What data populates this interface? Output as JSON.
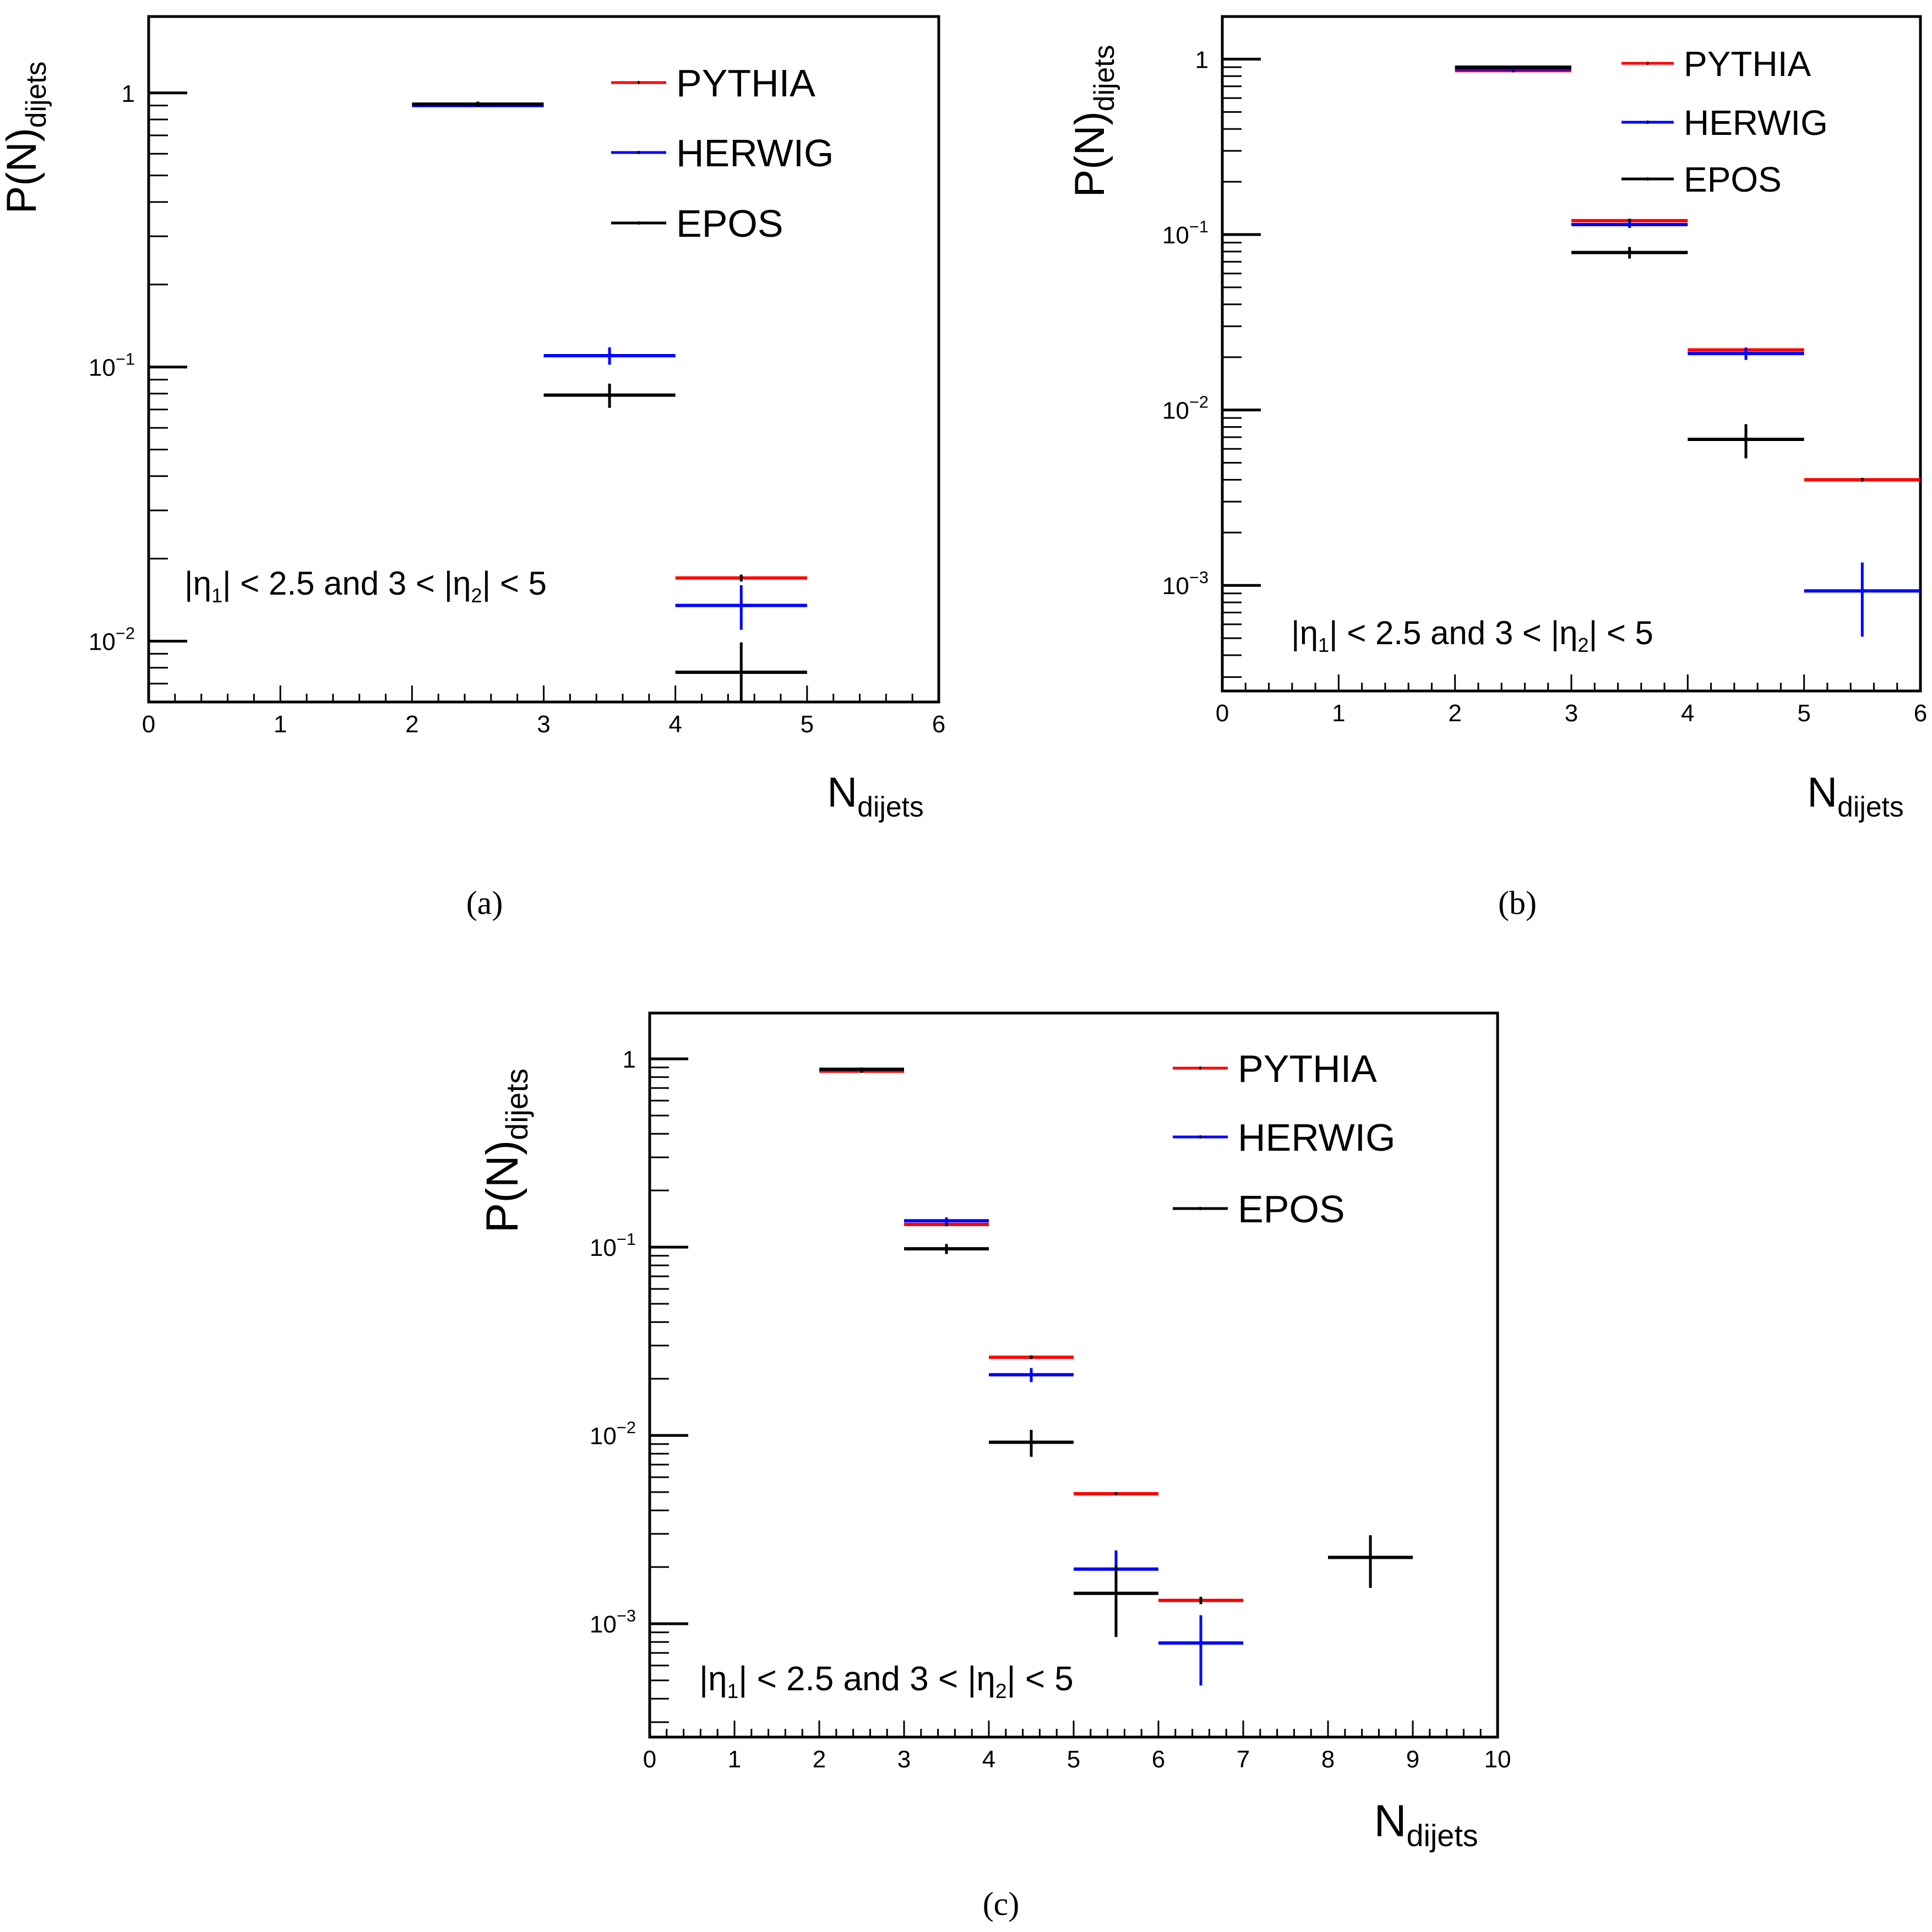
{
  "figure": {
    "captions": [
      "(a)",
      "(b)",
      "(c)"
    ]
  },
  "chart_data": [
    {
      "panel": "a",
      "type": "scatter",
      "yscale": "log",
      "xlim": [
        0,
        6
      ],
      "ylim": [
        0.006,
        1.9
      ],
      "x_ticks": [
        "0",
        "1",
        "2",
        "3",
        "4",
        "5",
        "6"
      ],
      "y_ticks": [
        {
          "value": 1,
          "label": "1",
          "exp": ""
        },
        {
          "value": 0.1,
          "label": "10",
          "exp": "−1"
        },
        {
          "value": 0.01,
          "label": "10",
          "exp": "−2"
        }
      ],
      "ylabel": {
        "main": "P(N)",
        "sub": "dijets"
      },
      "xlabel": {
        "main": "N",
        "sub": "dijets"
      },
      "annotation": {
        "parts": [
          "|η",
          "1",
          "| < 2.5 and 3 < |η",
          "2",
          "| < 5"
        ]
      },
      "legend": [
        {
          "name": "PYTHIA",
          "color": "#ff0000"
        },
        {
          "name": "HERWIG",
          "color": "#0000ff"
        },
        {
          "name": "EPOS",
          "color": "#000000"
        }
      ],
      "series": [
        {
          "name": "PYTHIA",
          "color": "#ff0000",
          "points": [
            {
              "x": 2.5,
              "y": 0.9,
              "yerr": 0.006
            },
            {
              "x": 3.5,
              "y": 0.11,
              "yerr": 0.003
            },
            {
              "x": 4.5,
              "y": 0.017,
              "yerr": 0.0005
            }
          ]
        },
        {
          "name": "HERWIG",
          "color": "#0000ff",
          "points": [
            {
              "x": 2.5,
              "y": 0.9,
              "yerr": 0.008
            },
            {
              "x": 3.5,
              "y": 0.11,
              "yerr": 0.008
            },
            {
              "x": 4.5,
              "y": 0.0135,
              "yerr": 0.0025
            }
          ]
        },
        {
          "name": "EPOS",
          "color": "#000000",
          "points": [
            {
              "x": 2.5,
              "y": 0.91,
              "yerr": 0.02
            },
            {
              "x": 3.5,
              "y": 0.079,
              "yerr": 0.008
            },
            {
              "x": 4.5,
              "y": 0.0077,
              "yerr": 0.0022
            }
          ]
        }
      ]
    },
    {
      "panel": "b",
      "type": "scatter",
      "yscale": "log",
      "xlim": [
        0,
        6
      ],
      "ylim": [
        0.00025,
        1.75
      ],
      "x_ticks": [
        "0",
        "1",
        "2",
        "3",
        "4",
        "5",
        "6"
      ],
      "y_ticks": [
        {
          "value": 1,
          "label": "1",
          "exp": ""
        },
        {
          "value": 0.1,
          "label": "10",
          "exp": "−1"
        },
        {
          "value": 0.01,
          "label": "10",
          "exp": "−2"
        },
        {
          "value": 0.001,
          "label": "10",
          "exp": "−3"
        }
      ],
      "ylabel": {
        "main": "P(N)",
        "sub": "dijets"
      },
      "xlabel": {
        "main": "N",
        "sub": "dijets"
      },
      "annotation": {
        "parts": [
          "|η",
          "1",
          "| < 2.5 and  3 < |η",
          "2",
          "| < 5"
        ]
      },
      "legend": [
        {
          "name": "PYTHIA",
          "color": "#ff0000"
        },
        {
          "name": "HERWIG",
          "color": "#0000ff"
        },
        {
          "name": "EPOS",
          "color": "#000000"
        }
      ],
      "series": [
        {
          "name": "PYTHIA",
          "color": "#ff0000",
          "points": [
            {
              "x": 2.5,
              "y": 0.86,
              "yerr": 0.006
            },
            {
              "x": 3.5,
              "y": 0.12,
              "yerr": 0.003
            },
            {
              "x": 4.5,
              "y": 0.022,
              "yerr": 0.0006
            },
            {
              "x": 5.5,
              "y": 0.004,
              "yerr": 0.0001
            }
          ]
        },
        {
          "name": "HERWIG",
          "color": "#0000ff",
          "points": [
            {
              "x": 2.5,
              "y": 0.88,
              "yerr": 0.006
            },
            {
              "x": 3.5,
              "y": 0.114,
              "yerr": 0.005
            },
            {
              "x": 4.5,
              "y": 0.021,
              "yerr": 0.0017
            },
            {
              "x": 5.5,
              "y": 0.00093,
              "yerr": 0.00042
            }
          ]
        },
        {
          "name": "EPOS",
          "color": "#000000",
          "points": [
            {
              "x": 2.5,
              "y": 0.9,
              "yerr": 0.02
            },
            {
              "x": 3.5,
              "y": 0.079,
              "yerr": 0.006
            },
            {
              "x": 4.5,
              "y": 0.0068,
              "yerr": 0.0015
            }
          ]
        }
      ]
    },
    {
      "panel": "c",
      "type": "scatter",
      "yscale": "log",
      "xlim": [
        0,
        10
      ],
      "ylim": [
        0.00025,
        1.75
      ],
      "x_ticks": [
        "0",
        "1",
        "2",
        "3",
        "4",
        "5",
        "6",
        "7",
        "8",
        "9",
        "10"
      ],
      "y_ticks": [
        {
          "value": 1,
          "label": "1",
          "exp": ""
        },
        {
          "value": 0.1,
          "label": "10",
          "exp": "−1"
        },
        {
          "value": 0.01,
          "label": "10",
          "exp": "−2"
        },
        {
          "value": 0.001,
          "label": "10",
          "exp": "−3"
        }
      ],
      "ylabel": {
        "main": "P(N)",
        "sub": "dijets"
      },
      "xlabel": {
        "main": "N",
        "sub": "dijets"
      },
      "annotation": {
        "parts": [
          "|η",
          "1",
          "| < 2.5 and  3 < |η",
          "2",
          "| < 5"
        ]
      },
      "legend": [
        {
          "name": "PYTHIA",
          "color": "#ff0000"
        },
        {
          "name": "HERWIG",
          "color": "#0000ff"
        },
        {
          "name": "EPOS",
          "color": "#000000"
        }
      ],
      "series": [
        {
          "name": "PYTHIA",
          "color": "#ff0000",
          "points": [
            {
              "x": 2.5,
              "y": 0.86,
              "yerr": 0.006
            },
            {
              "x": 3.5,
              "y": 0.132,
              "yerr": 0.003
            },
            {
              "x": 4.5,
              "y": 0.026,
              "yerr": 0.0006
            },
            {
              "x": 5.5,
              "y": 0.0049,
              "yerr": 0.0001
            },
            {
              "x": 6.5,
              "y": 0.00133,
              "yerr": 6e-05
            }
          ]
        },
        {
          "name": "HERWIG",
          "color": "#0000ff",
          "points": [
            {
              "x": 2.5,
              "y": 0.88,
              "yerr": 0.006
            },
            {
              "x": 3.5,
              "y": 0.138,
              "yerr": 0.006
            },
            {
              "x": 4.5,
              "y": 0.021,
              "yerr": 0.0018
            },
            {
              "x": 5.5,
              "y": 0.00195,
              "yerr": 0.0005
            },
            {
              "x": 6.5,
              "y": 0.00079,
              "yerr": 0.00032
            }
          ]
        },
        {
          "name": "EPOS",
          "color": "#000000",
          "points": [
            {
              "x": 2.5,
              "y": 0.88,
              "yerr": 0.02
            },
            {
              "x": 3.5,
              "y": 0.098,
              "yerr": 0.006
            },
            {
              "x": 4.5,
              "y": 0.0092,
              "yerr": 0.0015
            },
            {
              "x": 5.5,
              "y": 0.00145,
              "yerr": 0.0006
            },
            {
              "x": 8.5,
              "y": 0.00225,
              "yerr": 0.0007
            }
          ]
        }
      ]
    }
  ]
}
